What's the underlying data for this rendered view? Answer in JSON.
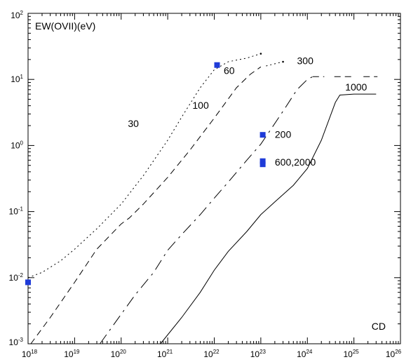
{
  "chart_data": {
    "type": "line",
    "ylabel": "EW(OVII)(eV)",
    "xlabel": "CD",
    "xscale": "log",
    "yscale": "log",
    "xlim": [
      1e+18,
      1e+26
    ],
    "ylim": [
      0.001,
      100
    ],
    "x_ticks": [
      {
        "base": "10",
        "exp": "18",
        "value": 1e+18
      },
      {
        "base": "10",
        "exp": "19",
        "value": 1e+19
      },
      {
        "base": "10",
        "exp": "20",
        "value": 1e+20
      },
      {
        "base": "10",
        "exp": "21",
        "value": 1e+21
      },
      {
        "base": "10",
        "exp": "22",
        "value": 1e+22
      },
      {
        "base": "10",
        "exp": "23",
        "value": 1e+23
      },
      {
        "base": "10",
        "exp": "24",
        "value": 1e+24
      },
      {
        "base": "10",
        "exp": "25",
        "value": 1e+25
      },
      {
        "base": "10",
        "exp": "26",
        "value": 1e+26
      }
    ],
    "y_ticks": [
      {
        "base": "10",
        "exp": "-3",
        "value": 0.001
      },
      {
        "base": "10",
        "exp": "-2",
        "value": 0.01
      },
      {
        "base": "10",
        "exp": "-1",
        "value": 0.1
      },
      {
        "base": "10",
        "exp": "0",
        "value": 1
      },
      {
        "base": "10",
        "exp": "1",
        "value": 10
      },
      {
        "base": "10",
        "exp": "2",
        "value": 100
      }
    ],
    "grid": false,
    "series": [
      {
        "name": "30",
        "style": "dotted",
        "x": [
          1e+18,
          2e+18,
          5e+18,
          1e+19,
          3e+19,
          1e+20,
          3e+20,
          1e+21,
          2e+21,
          5e+21,
          1e+22,
          2e+22,
          5e+22,
          1e+23
        ],
        "y": [
          0.01,
          0.012,
          0.018,
          0.027,
          0.055,
          0.13,
          0.35,
          1.2,
          2.7,
          7.5,
          14,
          18.5,
          21,
          24.5
        ]
      },
      {
        "name": "100",
        "style": "dashed",
        "x": [
          1.15e+18,
          3e+18,
          1e+19,
          3e+19,
          1e+20,
          1.5e+20,
          3e+20,
          1e+21,
          3e+21,
          1e+22,
          3e+22,
          6e+22,
          1e+23
        ],
        "y": [
          0.001,
          0.0025,
          0.0085,
          0.027,
          0.065,
          0.08,
          0.13,
          0.33,
          0.85,
          2.6,
          7.5,
          12,
          15.5
        ]
      },
      {
        "name": "300",
        "style": "longdash",
        "x": [
          3.5e+19,
          1e+20,
          2e+20,
          5e+20,
          1e+21,
          2e+21,
          5e+21,
          1e+22,
          2e+22,
          5e+22,
          1e+23,
          1.5e+23,
          3e+23,
          6e+23,
          1e+24,
          1.3e+24
        ],
        "y": [
          0.001,
          0.0028,
          0.0055,
          0.012,
          0.026,
          0.045,
          0.09,
          0.16,
          0.28,
          0.6,
          1.05,
          1.6,
          3.3,
          7,
          10,
          11
        ]
      },
      {
        "name": "1000",
        "style": "solid",
        "x": [
          7e+20,
          2e+21,
          5e+21,
          1e+22,
          2e+22,
          5e+22,
          1e+23,
          2e+23,
          5e+23,
          1e+24,
          2e+24,
          3e+24,
          4e+24,
          5e+24,
          1e+25,
          3e+25
        ],
        "y": [
          0.001,
          0.0025,
          0.006,
          0.013,
          0.025,
          0.05,
          0.09,
          0.14,
          0.25,
          0.45,
          1.2,
          2.6,
          4.5,
          5.8,
          6,
          6
        ]
      }
    ],
    "extra_segments": [
      {
        "style": "dotted",
        "x": [
          1.3e+23,
          3e+23
        ],
        "y": [
          16,
          18.5
        ]
      },
      {
        "style": "dashed",
        "x": [
          1.3e+24,
          2.3e+24
        ],
        "y": [
          11,
          11
        ]
      },
      {
        "style": "dashed",
        "x": [
          3.8e+24,
          1e+25
        ],
        "y": [
          11,
          11
        ]
      },
      {
        "style": "dashed",
        "x": [
          1.6e+25,
          3.2e+25
        ],
        "y": [
          11,
          11
        ]
      }
    ],
    "markers": [
      {
        "x": 1e+18,
        "y": 0.0085
      },
      {
        "x": 1.15e+22,
        "y": 16.5
      },
      {
        "x": 1.1e+23,
        "y": 1.45
      },
      {
        "x": 1.1e+23,
        "y": 0.58
      },
      {
        "x": 1.1e+23,
        "y": 0.52
      }
    ],
    "curve_labels": [
      {
        "text": "30",
        "x": 1.4e+20,
        "y": 1.9
      },
      {
        "text": "60",
        "x": 1.6e+22,
        "y": 12
      },
      {
        "text": "100",
        "x": 3.4e+21,
        "y": 3.6
      },
      {
        "text": "200",
        "x": 2e+23,
        "y": 1.3
      },
      {
        "text": "300",
        "x": 6e+23,
        "y": 17
      },
      {
        "text": "600,2000",
        "x": 2e+23,
        "y": 0.5
      },
      {
        "text": "1000",
        "x": 6.5e+24,
        "y": 6.8
      }
    ],
    "colors": {
      "marker": "#1f3bd8",
      "line": "#000000"
    }
  }
}
